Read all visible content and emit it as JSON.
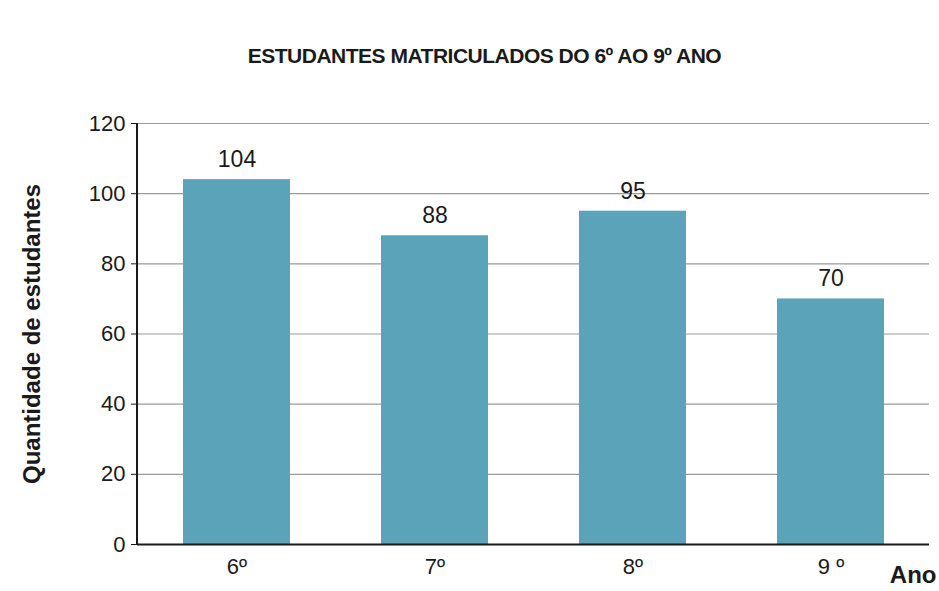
{
  "chart_data": {
    "type": "bar",
    "title": "ESTUDANTES MATRICULADOS DO 6º AO 9º ANO",
    "x_label": "Ano",
    "y_label": "Quantidade de estudantes",
    "categories": [
      "6º",
      "7º",
      "8º",
      "9 º"
    ],
    "values": [
      104,
      88,
      95,
      70
    ],
    "color": "#5aa3b8",
    "ylim": [
      0,
      120
    ],
    "yticks": [
      0,
      20,
      40,
      60,
      80,
      100,
      120
    ],
    "grid": true,
    "data_labels": true
  }
}
